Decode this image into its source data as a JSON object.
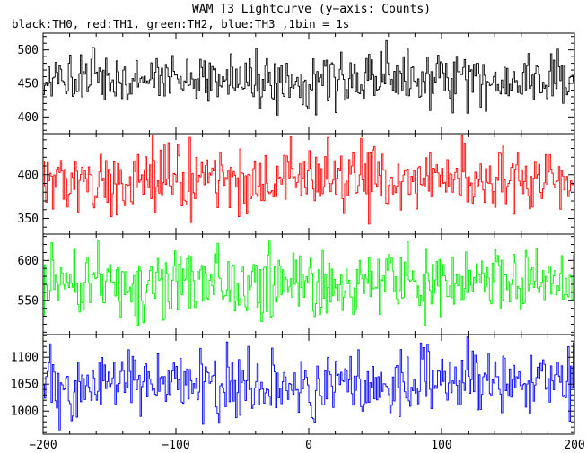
{
  "chart_data": {
    "type": "line",
    "title": "WAM T3 Lightcurve (y−axis: Counts)",
    "subtitle": "black:TH0, red:TH1, green:TH2, blue:TH3 ,1bin = 1s",
    "xlim": [
      -200,
      200
    ],
    "x_ticks": [
      -200,
      -100,
      0,
      100,
      200
    ],
    "x_tick_labels": [
      "−200",
      "−100",
      "0",
      "100",
      "200"
    ],
    "bin_seconds": 1,
    "grid": false,
    "panels": [
      {
        "series": "TH0",
        "color": "#000000",
        "ylim": [
          375,
          525
        ],
        "y_ticks": [
          400,
          450,
          500
        ],
        "mean": 455,
        "sd": 20,
        "min": 385,
        "max": 522
      },
      {
        "series": "TH1",
        "color": "#ff0000",
        "ylim": [
          332,
          447
        ],
        "y_ticks": [
          350,
          400
        ],
        "mean": 393,
        "sd": 19,
        "min": 335,
        "max": 445
      },
      {
        "series": "TH2",
        "color": "#00ee00",
        "ylim": [
          507,
          633
        ],
        "y_ticks": [
          550,
          600
        ],
        "mean": 572,
        "sd": 22,
        "min": 512,
        "max": 632
      },
      {
        "series": "TH3",
        "color": "#0000ff",
        "ylim": [
          957,
          1142
        ],
        "y_ticks": [
          1000,
          1050,
          1100
        ],
        "mean": 1050,
        "sd": 30,
        "min": 965,
        "max": 1140
      }
    ]
  }
}
